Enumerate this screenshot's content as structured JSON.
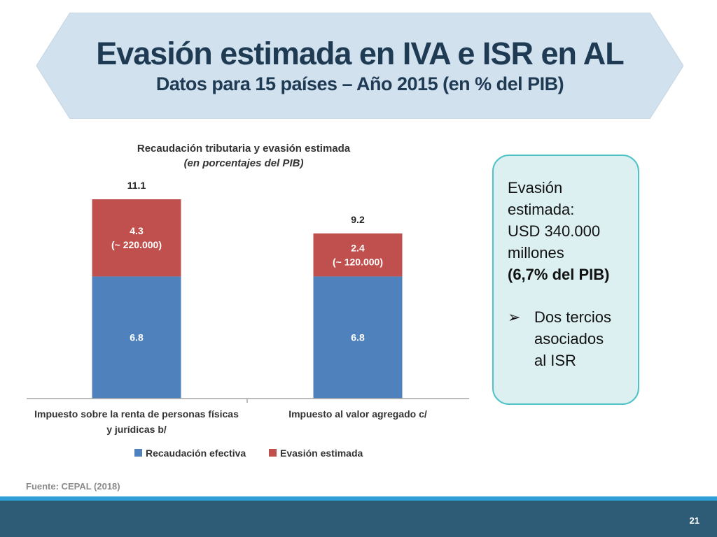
{
  "slide": {
    "title": "Evasión estimada en IVA e ISR en AL",
    "subtitle": "Datos para 15 países – Año 2015 (en % del PIB)"
  },
  "chart_data": {
    "type": "bar",
    "stacked": true,
    "title": "Recaudación tributaria y evasión estimada",
    "subtitle": "(en porcentajes del PIB)",
    "categories": [
      [
        "Impuesto sobre la renta de personas físicas",
        "y jurídicas b/"
      ],
      [
        "Impuesto al valor agregado c/"
      ]
    ],
    "series": [
      {
        "name": "Recaudación efectiva",
        "color": "#4f81bd",
        "values": [
          6.8,
          6.8
        ],
        "labels": [
          [
            "6.8"
          ],
          [
            "6.8"
          ]
        ]
      },
      {
        "name": "Evasión estimada",
        "color": "#c0504d",
        "values": [
          4.3,
          2.4
        ],
        "labels": [
          [
            "4.3",
            "(~ 220.000)"
          ],
          [
            "2.4",
            "(~ 120.000)"
          ]
        ]
      }
    ],
    "totals": [
      "11.1",
      "9.2"
    ],
    "ylim": [
      0,
      11.1
    ],
    "grid": false,
    "legend": "bottom"
  },
  "callout": {
    "lines": [
      "Evasión",
      "estimada:",
      "USD 340.000",
      "millones"
    ],
    "highlight": "(6,7% del PIB)",
    "bullet_icon": "arrow-bullet-icon",
    "bullet_lines": [
      "Dos tercios",
      "asociados",
      "al ISR"
    ]
  },
  "source": "Fuente: CEPAL (2018)",
  "page_number": "21"
}
